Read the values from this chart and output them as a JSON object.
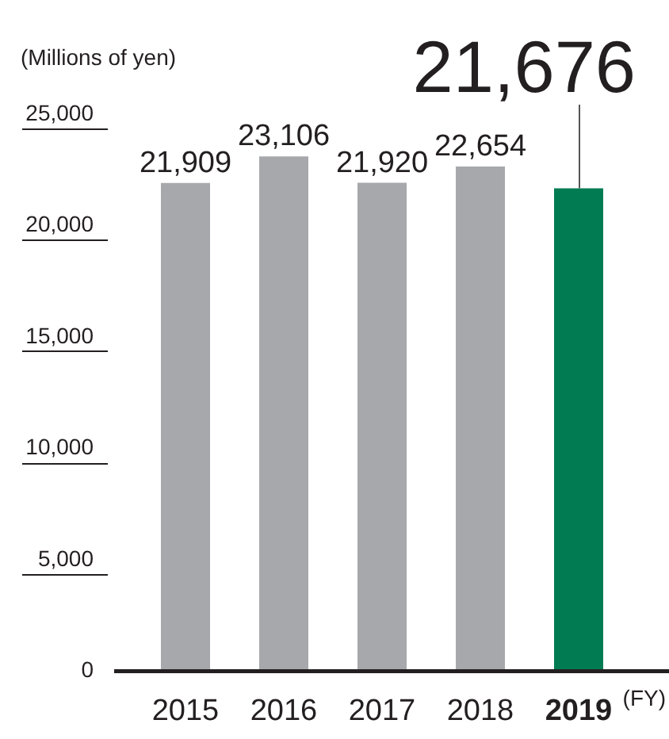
{
  "chart_data": {
    "type": "bar",
    "ylabel": "(Millions of yen)",
    "xlabel": "(FY)",
    "categories": [
      "2015",
      "2016",
      "2017",
      "2018",
      "2019"
    ],
    "values": [
      21909,
      23106,
      21920,
      22654,
      21676
    ],
    "value_labels": [
      "21,909",
      "23,106",
      "21,920",
      "22,654",
      "21,676"
    ],
    "colors": [
      "#a6a8ab",
      "#a6a8ab",
      "#a6a8ab",
      "#a6a8ab",
      "#007b52"
    ],
    "ylim": [
      0,
      25000
    ],
    "yticks": [
      0,
      {
        "value": 5000,
        "label": "5,000"
      },
      {
        "value": 10000,
        "label": "10,000"
      },
      {
        "value": 15000,
        "label": "15,000"
      },
      {
        "value": 20000,
        "label": "20,000"
      },
      {
        "value": 25000,
        "label": "25,000"
      }
    ]
  }
}
